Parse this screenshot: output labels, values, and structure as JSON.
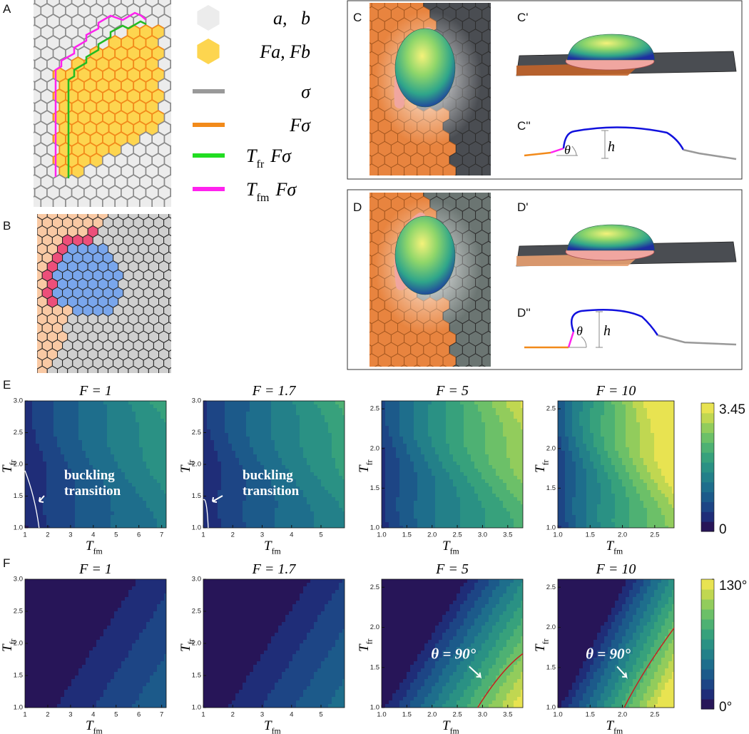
{
  "panel_labels": [
    "A",
    "B",
    "C",
    "C'",
    "C''",
    "D",
    "D'",
    "D''",
    "E",
    "F"
  ],
  "legend": [
    {
      "label": "a,   b",
      "fill": "#ececec"
    },
    {
      "label": "Fa, Fb",
      "fill": "#fdd54f"
    },
    {
      "label": "σ",
      "color": "#999999"
    },
    {
      "label": "Fσ",
      "color": "#f28a1a"
    },
    {
      "label": {
        "text": "T",
        "sub": "fr",
        "rest": "Fσ"
      },
      "color": "#22dd22"
    },
    {
      "label": {
        "text": "T",
        "sub": "fm",
        "rest": "Fσ"
      },
      "color": "#ff22ee"
    }
  ],
  "profile_labels": {
    "angle": "θ",
    "height": "h"
  },
  "chart_data": [
    {
      "type": "contour",
      "title": "F = 1",
      "xlabel": {
        "text": "T",
        "sub": "fm"
      },
      "ylabel": {
        "text": "T",
        "sub": "fr"
      },
      "xlim": [
        1,
        7.2
      ],
      "xticks": [
        1,
        2,
        3,
        4,
        5,
        6,
        7
      ],
      "ylim": [
        1,
        3
      ],
      "yticks": [
        {
          "value": 1,
          "label": "1.0"
        },
        {
          "value": 1.5,
          "label": "1.5"
        },
        {
          "value": 2,
          "label": "2.0"
        },
        {
          "value": 2.5,
          "label": "2.5"
        },
        {
          "value": 3,
          "label": "3.0"
        }
      ],
      "annotation": [
        "buckling",
        "transition"
      ]
    },
    {
      "type": "contour",
      "title": "F = 1.7",
      "xlabel": {
        "text": "T",
        "sub": "fm"
      },
      "ylabel": {
        "text": "T",
        "sub": "fr"
      },
      "xlim": [
        1,
        5.8
      ],
      "xticks": [
        1,
        2,
        3,
        4,
        5
      ],
      "ylim": [
        1,
        3
      ],
      "yticks": [
        {
          "value": 1,
          "label": "1.0"
        },
        {
          "value": 1.5,
          "label": "1.5"
        },
        {
          "value": 2,
          "label": "2.0"
        },
        {
          "value": 2.5,
          "label": "2.5"
        },
        {
          "value": 3,
          "label": "3.0"
        }
      ],
      "annotation": [
        "buckling",
        "transition"
      ]
    },
    {
      "type": "contour",
      "title": "F = 5",
      "xlabel": {
        "text": "T",
        "sub": "fm"
      },
      "ylabel": {
        "text": "T",
        "sub": "fr"
      },
      "xlim": [
        1,
        3.8
      ],
      "xticks": [
        {
          "value": 1,
          "label": "1.0"
        },
        {
          "value": 1.5,
          "label": "1.5"
        },
        {
          "value": 2,
          "label": "2.0"
        },
        {
          "value": 2.5,
          "label": "2.5"
        },
        {
          "value": 3,
          "label": "3.0"
        },
        {
          "value": 3.5,
          "label": "3.5"
        }
      ],
      "ylim": [
        1,
        2.6
      ],
      "yticks": [
        {
          "value": 1,
          "label": "1.0"
        },
        {
          "value": 1.5,
          "label": "1.5"
        },
        {
          "value": 2,
          "label": "2.0"
        },
        {
          "value": 2.5,
          "label": "2.5"
        }
      ]
    },
    {
      "type": "contour",
      "title": "F = 10",
      "xlabel": {
        "text": "T",
        "sub": "fm"
      },
      "ylabel": {
        "text": "T",
        "sub": "fr"
      },
      "xlim": [
        1,
        2.8
      ],
      "xticks": [
        {
          "value": 1,
          "label": "1.0"
        },
        {
          "value": 1.5,
          "label": "1.5"
        },
        {
          "value": 2,
          "label": "2.0"
        },
        {
          "value": 2.5,
          "label": "2.5"
        }
      ],
      "ylim": [
        1,
        2.6
      ],
      "yticks": [
        {
          "value": 1,
          "label": "1.0"
        },
        {
          "value": 1.5,
          "label": "1.5"
        },
        {
          "value": 2,
          "label": "2.0"
        },
        {
          "value": 2.5,
          "label": "2.5"
        }
      ]
    },
    {
      "type": "contour",
      "title": "F = 1",
      "xlabel": {
        "text": "T",
        "sub": "fm"
      },
      "ylabel": {
        "text": "T",
        "sub": "fr"
      },
      "xlim": [
        1,
        7.2
      ],
      "xticks": [
        1,
        2,
        3,
        4,
        5,
        6,
        7
      ],
      "ylim": [
        1,
        3
      ],
      "yticks": [
        {
          "value": 1,
          "label": "1.0"
        },
        {
          "value": 1.5,
          "label": "1.5"
        },
        {
          "value": 2,
          "label": "2.0"
        },
        {
          "value": 2.5,
          "label": "2.5"
        },
        {
          "value": 3,
          "label": "3.0"
        }
      ]
    },
    {
      "type": "contour",
      "title": "F = 1.7",
      "xlabel": {
        "text": "T",
        "sub": "fm"
      },
      "ylabel": {
        "text": "T",
        "sub": "fr"
      },
      "xlim": [
        1,
        5.8
      ],
      "xticks": [
        1,
        2,
        3,
        4,
        5
      ],
      "ylim": [
        1,
        3
      ],
      "yticks": [
        {
          "value": 1,
          "label": "1.0"
        },
        {
          "value": 1.5,
          "label": "1.5"
        },
        {
          "value": 2,
          "label": "2.0"
        },
        {
          "value": 2.5,
          "label": "2.5"
        },
        {
          "value": 3,
          "label": "3.0"
        }
      ]
    },
    {
      "type": "contour",
      "title": "F = 5",
      "xlabel": {
        "text": "T",
        "sub": "fm"
      },
      "ylabel": {
        "text": "T",
        "sub": "fr"
      },
      "xlim": [
        1,
        3.8
      ],
      "xticks": [
        {
          "value": 1,
          "label": "1.0"
        },
        {
          "value": 1.5,
          "label": "1.5"
        },
        {
          "value": 2,
          "label": "2.0"
        },
        {
          "value": 2.5,
          "label": "2.5"
        },
        {
          "value": 3,
          "label": "3.0"
        },
        {
          "value": 3.5,
          "label": "3.5"
        }
      ],
      "ylim": [
        1,
        2.6
      ],
      "yticks": [
        {
          "value": 1,
          "label": "1.0"
        },
        {
          "value": 1.5,
          "label": "1.5"
        },
        {
          "value": 2,
          "label": "2.0"
        },
        {
          "value": 2.5,
          "label": "2.5"
        }
      ],
      "annotation": [
        "θ = 90°"
      ]
    },
    {
      "type": "contour",
      "title": "F = 10",
      "xlabel": {
        "text": "T",
        "sub": "fm"
      },
      "ylabel": {
        "text": "T",
        "sub": "fr"
      },
      "xlim": [
        1,
        2.8
      ],
      "xticks": [
        {
          "value": 1,
          "label": "1.0"
        },
        {
          "value": 1.5,
          "label": "1.5"
        },
        {
          "value": 2,
          "label": "2.0"
        },
        {
          "value": 2.5,
          "label": "2.5"
        }
      ],
      "ylim": [
        1,
        2.6
      ],
      "yticks": [
        {
          "value": 1,
          "label": "1.0"
        },
        {
          "value": 1.5,
          "label": "1.5"
        },
        {
          "value": 2,
          "label": "2.0"
        },
        {
          "value": 2.5,
          "label": "2.5"
        }
      ],
      "annotation": [
        "θ = 90°"
      ]
    },
    {
      "type": "colorbar",
      "ylim": [
        0,
        3.45
      ],
      "yticks": [
        0,
        3.45
      ],
      "colors": [
        "#271558",
        "#1f2d78",
        "#1d4585",
        "#1c5a8a",
        "#1e6e8c",
        "#238089",
        "#2a9184",
        "#37a17c",
        "#4eb173",
        "#6cc068",
        "#92cc5c",
        "#c0d751",
        "#e8e351"
      ]
    },
    {
      "type": "colorbar",
      "ylim": [
        0,
        130
      ],
      "yticks": [
        {
          "value": 0,
          "label": "0°"
        },
        {
          "value": 130,
          "label": "130°"
        }
      ],
      "colors": [
        "#271558",
        "#1f2d78",
        "#1d4585",
        "#1c5a8a",
        "#1e6e8c",
        "#238089",
        "#2a9184",
        "#37a17c",
        "#4eb173",
        "#6cc068",
        "#92cc5c",
        "#c0d751",
        "#e8e351"
      ]
    }
  ]
}
